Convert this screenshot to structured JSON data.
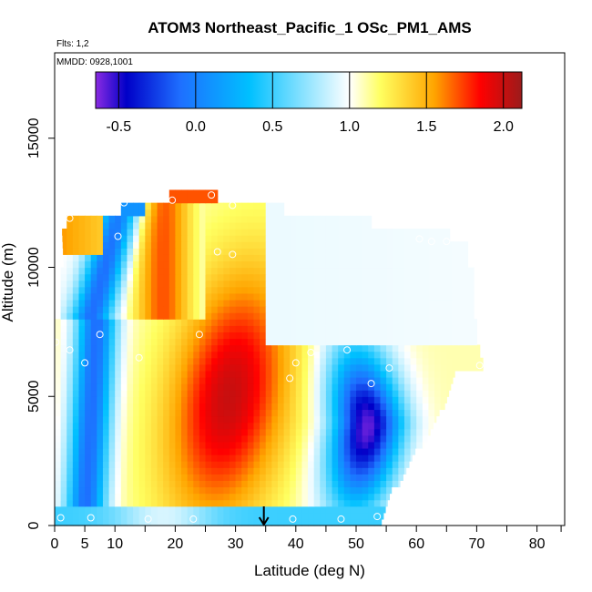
{
  "chart_data": {
    "type": "heatmap",
    "title": "ATOM3 Northeast_Pacific_1 OSc_PM1_AMS",
    "subtitle_flts": "Flts: 1,2",
    "subtitle_mmdd": "MMDD: 0928,1001",
    "xlabel": "Latitude (deg N)",
    "ylabel": "Altitude (m)",
    "xlim": [
      0,
      84
    ],
    "ylim": [
      0,
      18000
    ],
    "x_ticks": [
      0,
      5,
      10,
      20,
      30,
      40,
      50,
      60,
      70,
      80
    ],
    "x_tick_labels": [
      "0",
      "5",
      "10",
      "20",
      "30",
      "40",
      "50",
      "60",
      "70",
      "80"
    ],
    "y_ticks": [
      0,
      5000,
      10000,
      15000
    ],
    "y_tick_labels": [
      "0",
      "5000",
      "10000",
      "15000"
    ],
    "colorbar": {
      "range": [
        -0.65,
        2.12
      ],
      "ticks": [
        -0.5,
        0,
        0.5,
        1.0,
        1.5,
        2.0
      ],
      "tick_labels": [
        "-0.5",
        "0.0",
        "0.5",
        "1.0",
        "1.5",
        "2.0"
      ],
      "colors": [
        "#8a2be2",
        "#0000c8",
        "#1e6fff",
        "#00c0ff",
        "#ffffff",
        "#ffff60",
        "#ffa500",
        "#ff0000",
        "#9b1b1b"
      ]
    },
    "grid": false,
    "legend": "colorbar top",
    "arrow_latitude": 35,
    "flight_points": [
      {
        "x": 0.2,
        "y": 7100
      },
      {
        "x": 2.5,
        "y": 6800
      },
      {
        "x": 5,
        "y": 6300
      },
      {
        "x": 7.5,
        "y": 7400
      },
      {
        "x": 14,
        "y": 6500
      },
      {
        "x": 24,
        "y": 7400
      },
      {
        "x": 39,
        "y": 5700
      },
      {
        "x": 40,
        "y": 6300
      },
      {
        "x": 42.5,
        "y": 6700
      },
      {
        "x": 48.5,
        "y": 6800
      },
      {
        "x": 52.5,
        "y": 5500
      },
      {
        "x": 55.5,
        "y": 6100
      },
      {
        "x": 70.5,
        "y": 6200
      },
      {
        "x": 2.5,
        "y": 11900
      },
      {
        "x": 10.5,
        "y": 11200
      },
      {
        "x": 11.5,
        "y": 12500
      },
      {
        "x": 19.5,
        "y": 12600
      },
      {
        "x": 26,
        "y": 12800
      },
      {
        "x": 29.5,
        "y": 12400
      },
      {
        "x": 27,
        "y": 10600
      },
      {
        "x": 29.5,
        "y": 10500
      },
      {
        "x": 60.5,
        "y": 11100
      },
      {
        "x": 62.5,
        "y": 11000
      },
      {
        "x": 65,
        "y": 11000
      },
      {
        "x": 1,
        "y": 300
      },
      {
        "x": 6,
        "y": 300
      },
      {
        "x": 15.5,
        "y": 250
      },
      {
        "x": 23,
        "y": 250
      },
      {
        "x": 39.5,
        "y": 250
      },
      {
        "x": 47.5,
        "y": 250
      },
      {
        "x": 53.5,
        "y": 350
      }
    ]
  }
}
